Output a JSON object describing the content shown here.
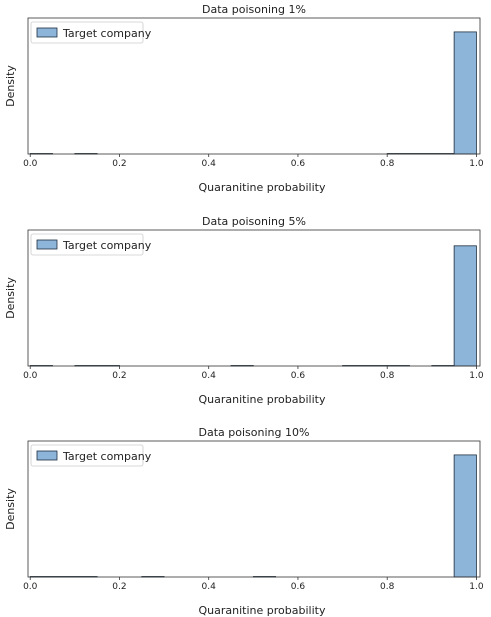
{
  "chart_data": [
    {
      "type": "bar",
      "title": "Data poisoning 1%",
      "xlabel": "Quaranitine probability",
      "ylabel": "Density",
      "legend": [
        "Target company"
      ],
      "legend_position": "top-left",
      "xlim": [
        0,
        1
      ],
      "xticks": [
        "0.0",
        "0.2",
        "0.4",
        "0.6",
        "0.8",
        "1.0"
      ],
      "bins": [
        {
          "x0": 0.0,
          "x1": 0.05,
          "density": 0.08
        },
        {
          "x0": 0.1,
          "x1": 0.15,
          "density": 0.08
        },
        {
          "x0": 0.8,
          "x1": 0.95,
          "density": 0.08
        },
        {
          "x0": 0.95,
          "x1": 1.0,
          "density": 19.3
        }
      ],
      "ylim": [
        0,
        21.5
      ]
    },
    {
      "type": "bar",
      "title": "Data poisoning 5%",
      "xlabel": "Quaranitine probability",
      "ylabel": "Density",
      "legend": [
        "Target company"
      ],
      "legend_position": "top-left",
      "xlim": [
        0,
        1
      ],
      "xticks": [
        "0.0",
        "0.2",
        "0.4",
        "0.6",
        "0.8",
        "1.0"
      ],
      "bins": [
        {
          "x0": 0.0,
          "x1": 0.05,
          "density": 0.08
        },
        {
          "x0": 0.1,
          "x1": 0.2,
          "density": 0.08
        },
        {
          "x0": 0.45,
          "x1": 0.5,
          "density": 0.08
        },
        {
          "x0": 0.7,
          "x1": 0.85,
          "density": 0.08
        },
        {
          "x0": 0.9,
          "x1": 0.95,
          "density": 0.08
        },
        {
          "x0": 0.95,
          "x1": 1.0,
          "density": 19.0
        }
      ],
      "ylim": [
        0,
        21.5
      ]
    },
    {
      "type": "bar",
      "title": "Data poisoning 10%",
      "xlabel": "Quaranitine probability",
      "ylabel": "Density",
      "legend": [
        "Target company"
      ],
      "legend_position": "top-left",
      "xlim": [
        0,
        1
      ],
      "xticks": [
        "0.0",
        "0.2",
        "0.4",
        "0.6",
        "0.8",
        "1.0"
      ],
      "bins": [
        {
          "x0": 0.0,
          "x1": 0.15,
          "density": 0.08
        },
        {
          "x0": 0.25,
          "x1": 0.3,
          "density": 0.08
        },
        {
          "x0": 0.5,
          "x1": 0.55,
          "density": 0.08
        },
        {
          "x0": 0.95,
          "x1": 1.0,
          "density": 19.3
        }
      ],
      "ylim": [
        0,
        21.5
      ]
    }
  ],
  "colors": {
    "bar_fill": "#8db4d9",
    "bar_edge": "#1f2f3f",
    "axes": "#333333"
  }
}
